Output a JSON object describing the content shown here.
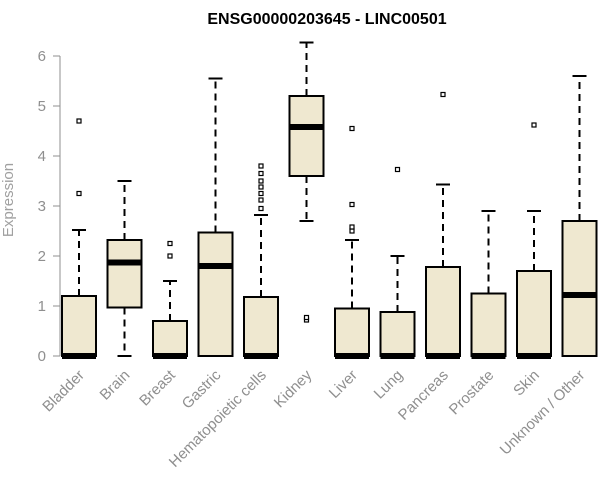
{
  "chart_data": {
    "type": "box",
    "title": "ENSG00000203645 - LINC00501",
    "ylabel": "Expression",
    "xlabel": "",
    "ylim": [
      0,
      6.3
    ],
    "yticks": [
      0,
      1,
      2,
      3,
      4,
      5,
      6
    ],
    "grid": false,
    "legend": "none",
    "box_fill": "#efe8d0",
    "box_stroke": "#000000",
    "axis_color": "#8f8f8f",
    "categories": [
      "Bladder",
      "Brain",
      "Breast",
      "Gastric",
      "Hematopoietic cells",
      "Kidney",
      "Liver",
      "Lung",
      "Pancreas",
      "Prostate",
      "Skin",
      "Unknown / Other"
    ],
    "boxes": [
      {
        "min": 0,
        "q1": 0,
        "median": 0,
        "q3": 1.2,
        "max": 2.52,
        "outliers": [
          3.25,
          4.7
        ]
      },
      {
        "min": 0,
        "q1": 0.97,
        "median": 1.87,
        "q3": 2.32,
        "max": 3.5,
        "outliers": []
      },
      {
        "min": 0,
        "q1": 0,
        "median": 0,
        "q3": 0.7,
        "max": 1.5,
        "outliers": [
          2.0,
          2.25
        ]
      },
      {
        "min": 0,
        "q1": 0,
        "median": 1.8,
        "q3": 2.47,
        "max": 5.55,
        "outliers": []
      },
      {
        "min": 0,
        "q1": 0,
        "median": 0,
        "q3": 1.18,
        "max": 2.82,
        "outliers": [
          2.95,
          3.12,
          3.25,
          3.38,
          3.5,
          3.65,
          3.8
        ]
      },
      {
        "min": 2.7,
        "q1": 3.6,
        "median": 4.58,
        "q3": 5.2,
        "max": 6.27,
        "outliers": [
          0.72,
          0.77
        ]
      },
      {
        "min": 0,
        "q1": 0,
        "median": 0,
        "q3": 0.95,
        "max": 2.32,
        "outliers": [
          2.5,
          2.58,
          3.03,
          4.55
        ]
      },
      {
        "min": 0,
        "q1": 0,
        "median": 0,
        "q3": 0.88,
        "max": 2.0,
        "outliers": [
          3.73
        ]
      },
      {
        "min": 0,
        "q1": 0,
        "median": 0,
        "q3": 1.78,
        "max": 3.43,
        "outliers": [
          5.23
        ]
      },
      {
        "min": 0,
        "q1": 0,
        "median": 0,
        "q3": 1.25,
        "max": 2.9,
        "outliers": []
      },
      {
        "min": 0,
        "q1": 0,
        "median": 0,
        "q3": 1.7,
        "max": 2.9,
        "outliers": [
          4.62
        ]
      },
      {
        "min": 0,
        "q1": 0,
        "median": 1.22,
        "q3": 2.7,
        "max": 5.6,
        "outliers": []
      }
    ]
  }
}
